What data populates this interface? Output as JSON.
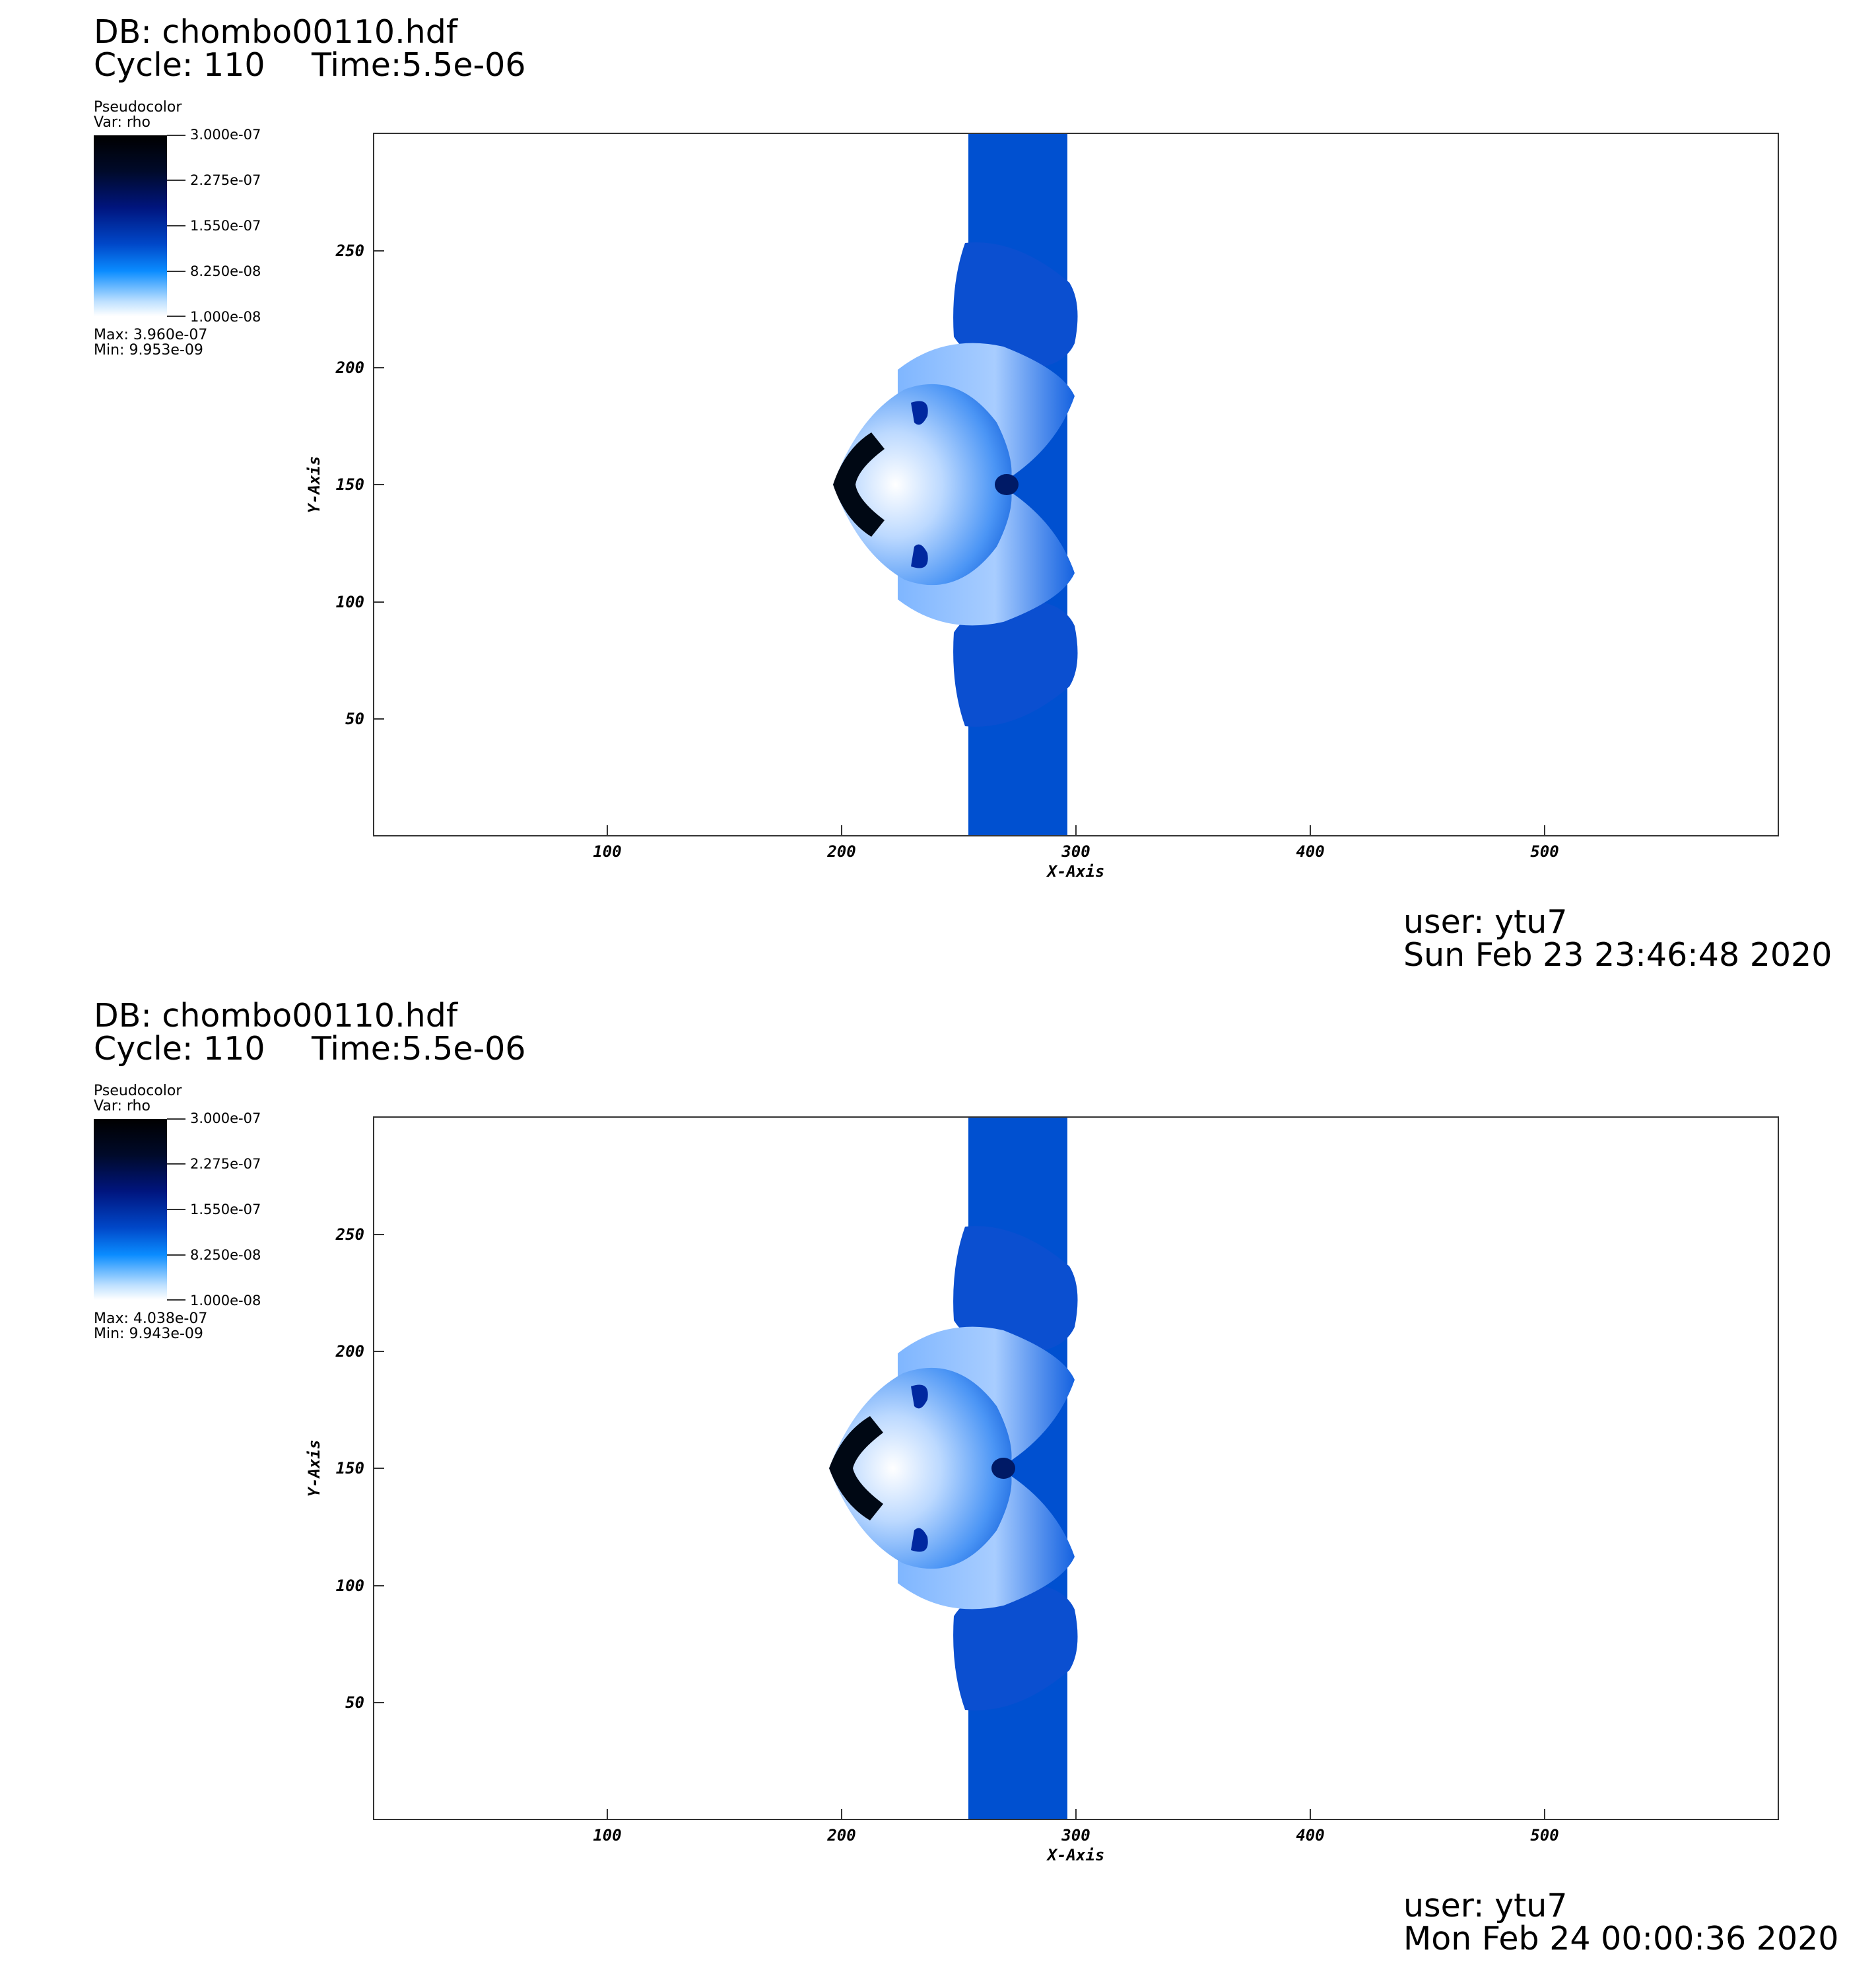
{
  "panels": [
    {
      "db": "DB: chombo00110.hdf",
      "cycle": "Cycle: 110",
      "time": "Time:5.5e-06",
      "legend": {
        "title": "Pseudocolor",
        "var": "Var: rho",
        "ticks": [
          "3.000e-07",
          "2.275e-07",
          "1.550e-07",
          "8.250e-08",
          "1.000e-08"
        ],
        "max": "Max:  3.960e-07",
        "min": "Min:  9.953e-09"
      },
      "user": "user: ytu7",
      "date": "Sun Feb 23 23:46:48 2020"
    },
    {
      "db": "DB: chombo00110.hdf",
      "cycle": "Cycle: 110",
      "time": "Time:5.5e-06",
      "legend": {
        "title": "Pseudocolor",
        "var": "Var: rho",
        "ticks": [
          "3.000e-07",
          "2.275e-07",
          "1.550e-07",
          "8.250e-08",
          "1.000e-08"
        ],
        "max": "Max:  4.038e-07",
        "min": "Min:  9.943e-09"
      },
      "user": "user: ytu7",
      "date": "Mon Feb 24 00:00:36 2020"
    }
  ],
  "axes": {
    "x_label": "X-Axis",
    "y_label": "Y-Axis",
    "x_ticks": [
      "100",
      "200",
      "300",
      "400",
      "500"
    ],
    "y_ticks": [
      "50",
      "100",
      "150",
      "200",
      "250"
    ]
  },
  "colors": {
    "slab": "#0050d0",
    "dark": "#000814",
    "deep": "#0028a0",
    "light": "#e8f2ff"
  }
}
